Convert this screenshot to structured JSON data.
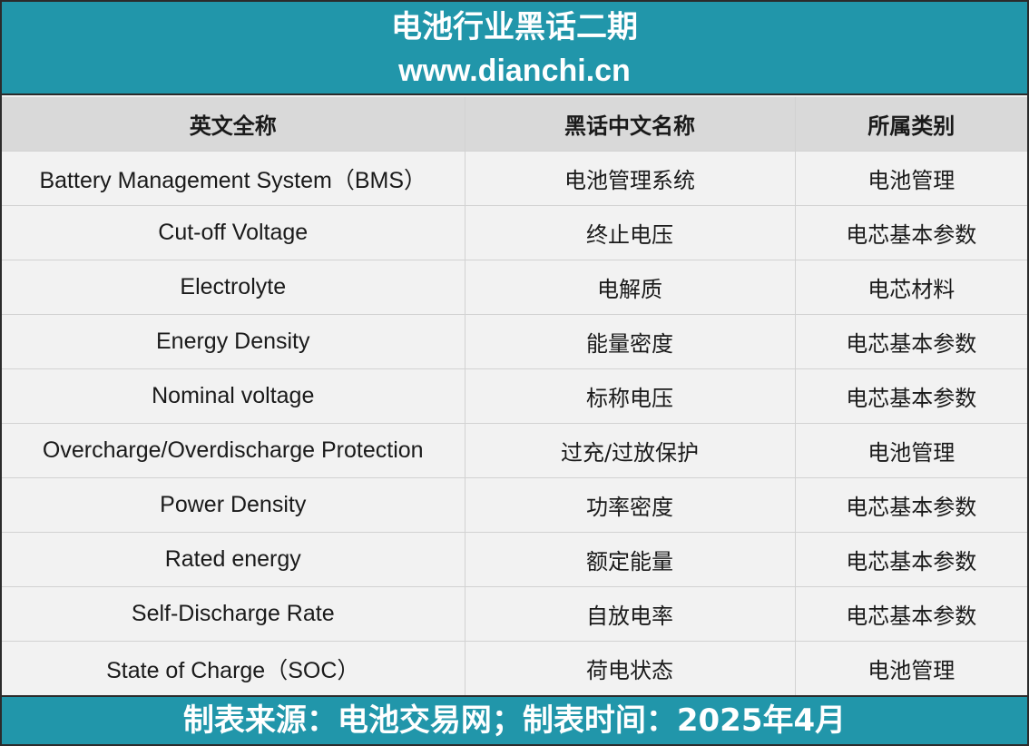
{
  "header": {
    "title": "电池行业黑话二期",
    "site": "www.dianchi.cn"
  },
  "table": {
    "columns": [
      "英文全称",
      "黑话中文名称",
      "所属类别"
    ],
    "rows": [
      {
        "en": "Battery Management System（BMS）",
        "cn": "电池管理系统",
        "category": "电池管理"
      },
      {
        "en": "Cut-off Voltage",
        "cn": "终止电压",
        "category": "电芯基本参数"
      },
      {
        "en": "Electrolyte",
        "cn": "电解质",
        "category": "电芯材料"
      },
      {
        "en": "Energy Density",
        "cn": "能量密度",
        "category": "电芯基本参数"
      },
      {
        "en": "Nominal voltage",
        "cn": "标称电压",
        "category": "电芯基本参数"
      },
      {
        "en": "Overcharge/Overdischarge Protection",
        "cn": "过充/过放保护",
        "category": "电池管理"
      },
      {
        "en": "Power Density",
        "cn": "功率密度",
        "category": "电芯基本参数"
      },
      {
        "en": "Rated energy",
        "cn": "额定能量",
        "category": "电芯基本参数"
      },
      {
        "en": "Self-Discharge Rate",
        "cn": "自放电率",
        "category": "电芯基本参数"
      },
      {
        "en": "State of Charge（SOC）",
        "cn": "荷电状态",
        "category": "电池管理"
      }
    ]
  },
  "footer": {
    "text": "制表来源：电池交易网；制表时间：2025年4月"
  },
  "colors": {
    "banner": "#2196aa",
    "header_row": "#d9d9d9",
    "cell": "#f2f2f2"
  }
}
